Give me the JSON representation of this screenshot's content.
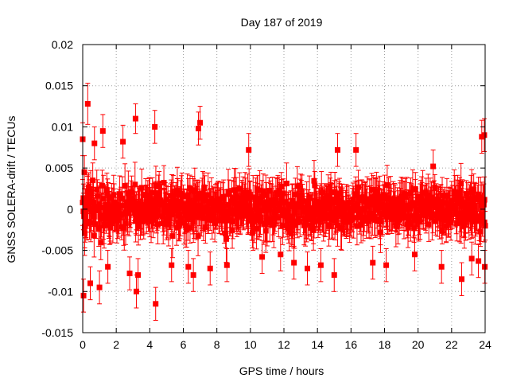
{
  "chart_data": {
    "type": "scatter",
    "title": "Day 187 of 2019",
    "xlabel": "GPS time / hours",
    "ylabel": "GNSS SOLERA-drift / TECUs",
    "xlim": [
      0,
      24
    ],
    "ylim": [
      -0.015,
      0.02
    ],
    "x_ticks": [
      0,
      2,
      4,
      6,
      8,
      10,
      12,
      14,
      16,
      18,
      20,
      22,
      24
    ],
    "x_tick_labels": [
      "0",
      "2",
      "4",
      "6",
      "8",
      "10",
      "12",
      "14",
      "16",
      "18",
      "20",
      "22",
      "24"
    ],
    "y_ticks": [
      -0.015,
      -0.01,
      -0.005,
      0,
      0.005,
      0.01,
      0.015,
      0.02
    ],
    "y_tick_labels": [
      "-0.015",
      "-0.01",
      "-0.005",
      "0",
      "0.005",
      "0.01",
      "0.015",
      "0.02"
    ],
    "grid": true,
    "series_color": "#ff0000",
    "marker": "square-with-errorbars",
    "series": [
      {
        "name": "SOLERA-drift",
        "points": [
          {
            "x": 0.0,
            "y": 0.0085,
            "err": 0.002
          },
          {
            "x": 0.05,
            "y": -0.0105,
            "err": 0.002
          },
          {
            "x": 0.1,
            "y": 0.0045,
            "err": 0.002
          },
          {
            "x": 0.15,
            "y": -0.002,
            "err": 0.002
          },
          {
            "x": 0.3,
            "y": 0.0128,
            "err": 0.0025
          },
          {
            "x": 0.45,
            "y": -0.009,
            "err": 0.002
          },
          {
            "x": 0.7,
            "y": 0.008,
            "err": 0.002
          },
          {
            "x": 1.0,
            "y": -0.0095,
            "err": 0.002
          },
          {
            "x": 1.2,
            "y": 0.0095,
            "err": 0.002
          },
          {
            "x": 1.5,
            "y": -0.007,
            "err": 0.002
          },
          {
            "x": 2.4,
            "y": 0.0082,
            "err": 0.002
          },
          {
            "x": 2.8,
            "y": -0.0078,
            "err": 0.002
          },
          {
            "x": 3.15,
            "y": 0.011,
            "err": 0.0018
          },
          {
            "x": 3.2,
            "y": -0.01,
            "err": 0.002
          },
          {
            "x": 3.3,
            "y": -0.008,
            "err": 0.002
          },
          {
            "x": 4.3,
            "y": 0.01,
            "err": 0.002
          },
          {
            "x": 4.35,
            "y": -0.0115,
            "err": 0.002
          },
          {
            "x": 5.3,
            "y": -0.0068,
            "err": 0.002
          },
          {
            "x": 6.3,
            "y": -0.007,
            "err": 0.002
          },
          {
            "x": 6.6,
            "y": -0.008,
            "err": 0.002
          },
          {
            "x": 6.9,
            "y": 0.0098,
            "err": 0.002
          },
          {
            "x": 7.0,
            "y": 0.0105,
            "err": 0.002
          },
          {
            "x": 7.6,
            "y": -0.0072,
            "err": 0.002
          },
          {
            "x": 8.6,
            "y": -0.0068,
            "err": 0.002
          },
          {
            "x": 9.9,
            "y": 0.0072,
            "err": 0.002
          },
          {
            "x": 10.7,
            "y": -0.0058,
            "err": 0.002
          },
          {
            "x": 11.8,
            "y": -0.0055,
            "err": 0.002
          },
          {
            "x": 12.6,
            "y": -0.0065,
            "err": 0.002
          },
          {
            "x": 13.4,
            "y": -0.0072,
            "err": 0.002
          },
          {
            "x": 14.2,
            "y": -0.0068,
            "err": 0.002
          },
          {
            "x": 15.0,
            "y": -0.008,
            "err": 0.002
          },
          {
            "x": 15.2,
            "y": 0.0072,
            "err": 0.002
          },
          {
            "x": 16.3,
            "y": 0.0072,
            "err": 0.002
          },
          {
            "x": 17.3,
            "y": -0.0065,
            "err": 0.002
          },
          {
            "x": 18.1,
            "y": -0.0068,
            "err": 0.002
          },
          {
            "x": 19.8,
            "y": -0.0055,
            "err": 0.002
          },
          {
            "x": 20.9,
            "y": 0.0052,
            "err": 0.002
          },
          {
            "x": 21.4,
            "y": -0.007,
            "err": 0.002
          },
          {
            "x": 22.6,
            "y": -0.0085,
            "err": 0.002
          },
          {
            "x": 23.2,
            "y": -0.006,
            "err": 0.002
          },
          {
            "x": 23.6,
            "y": -0.0063,
            "err": 0.002
          },
          {
            "x": 23.8,
            "y": 0.0088,
            "err": 0.002
          },
          {
            "x": 23.95,
            "y": 0.009,
            "err": 0.002
          },
          {
            "x": 23.98,
            "y": -0.007,
            "err": 0.002
          }
        ],
        "bulk_band": {
          "center": 0.0,
          "typical_spread": 0.0026,
          "typical_err": 0.0022,
          "x_step": 0.04
        }
      }
    ]
  }
}
